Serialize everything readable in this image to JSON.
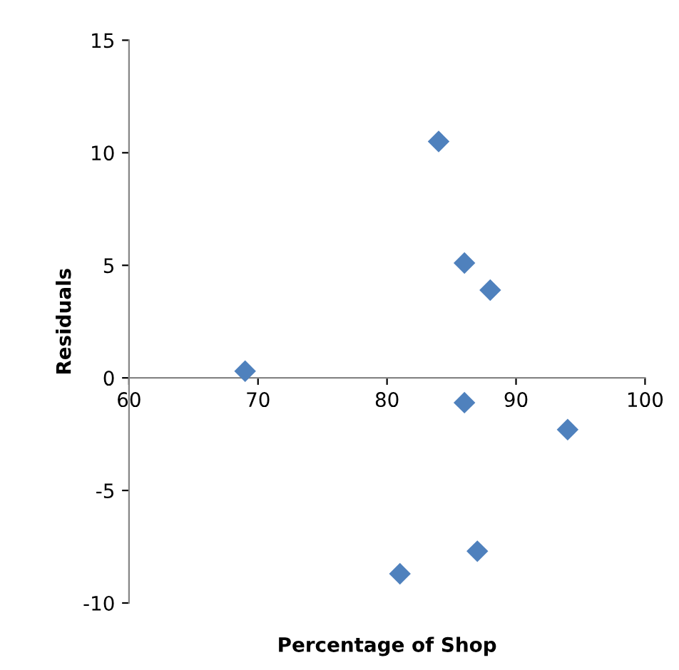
{
  "chart_data": {
    "type": "scatter",
    "xlabel": "Percentage of Shop",
    "ylabel": "Residuals",
    "x": [
      69,
      84,
      86,
      88,
      86,
      94,
      81,
      87
    ],
    "values": [
      0.3,
      10.5,
      5.1,
      3.9,
      -1.1,
      -2.3,
      -8.7,
      -7.7
    ],
    "color": "#4f81bd",
    "marker": "diamond",
    "xlim": [
      60,
      100
    ],
    "xticks": [
      60,
      70,
      80,
      90,
      100
    ],
    "ylim": [
      -10,
      15
    ],
    "yticks": [
      -10,
      -5,
      0,
      5,
      10,
      15
    ],
    "grid": false,
    "legend": false
  }
}
